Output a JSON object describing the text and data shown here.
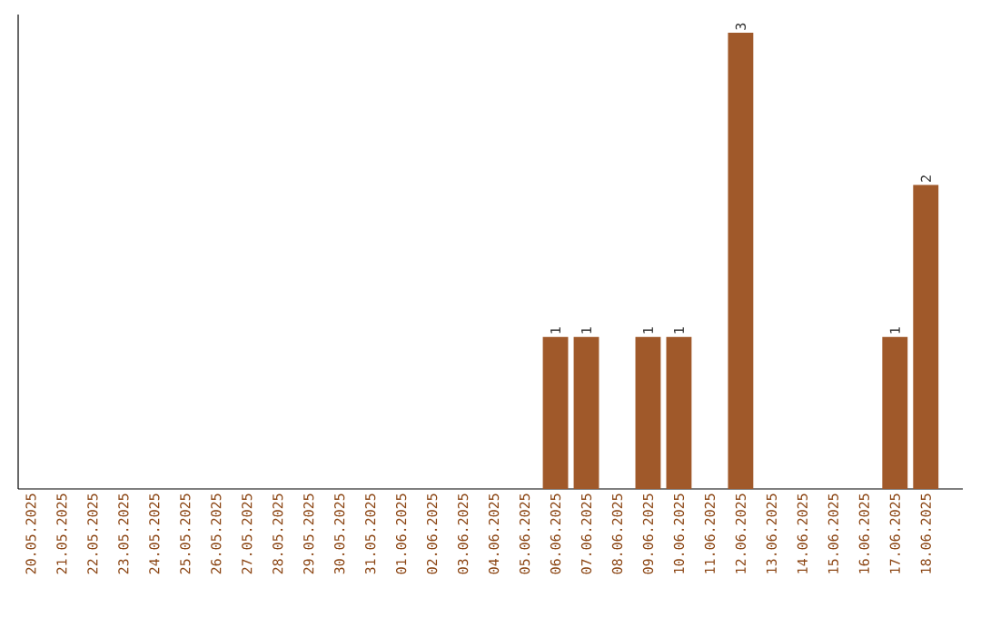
{
  "chart_data": {
    "type": "bar",
    "categories": [
      "20.05.2025",
      "21.05.2025",
      "22.05.2025",
      "23.05.2025",
      "24.05.2025",
      "25.05.2025",
      "26.05.2025",
      "27.05.2025",
      "28.05.2025",
      "29.05.2025",
      "30.05.2025",
      "31.05.2025",
      "01.06.2025",
      "02.06.2025",
      "03.06.2025",
      "04.06.2025",
      "05.06.2025",
      "06.06.2025",
      "07.06.2025",
      "08.06.2025",
      "09.06.2025",
      "10.06.2025",
      "11.06.2025",
      "12.06.2025",
      "13.06.2025",
      "14.06.2025",
      "15.06.2025",
      "16.06.2025",
      "17.06.2025",
      "18.06.2025"
    ],
    "values": [
      null,
      null,
      null,
      null,
      null,
      null,
      null,
      null,
      null,
      null,
      null,
      null,
      null,
      null,
      null,
      null,
      null,
      1,
      1,
      null,
      1,
      1,
      null,
      3,
      null,
      null,
      null,
      null,
      1,
      2
    ],
    "data_labels": true,
    "color": "#a0592a"
  }
}
